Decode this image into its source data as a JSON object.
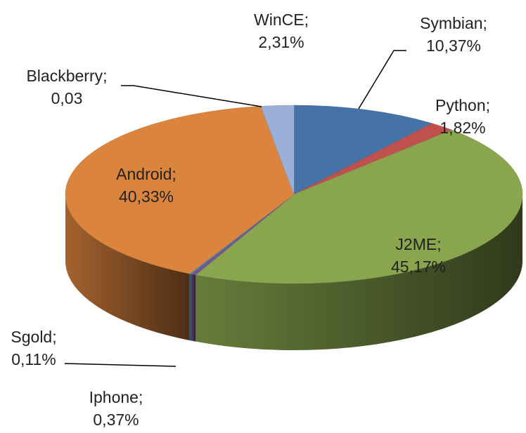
{
  "chart_data": {
    "type": "pie3d",
    "categories": [
      "Symbian;",
      "Python;",
      "J2ME;",
      "Iphone;",
      "Sgold;",
      "Android;",
      "Blackberry;",
      "WinCE;"
    ],
    "values": [
      10.37,
      1.82,
      45.17,
      0.37,
      0.11,
      40.33,
      0.03,
      2.31
    ],
    "value_labels": [
      "10,37%",
      "1,82%",
      "45,17%",
      "0,37%",
      "0,11%",
      "40,33%",
      "0,03",
      "2,31%"
    ],
    "colors": [
      "#4572a7",
      "#c0504d",
      "#89a54e",
      "#71588f",
      "#4198af",
      "#db843d",
      "#93a9cf",
      "#9bb0d8"
    ]
  }
}
